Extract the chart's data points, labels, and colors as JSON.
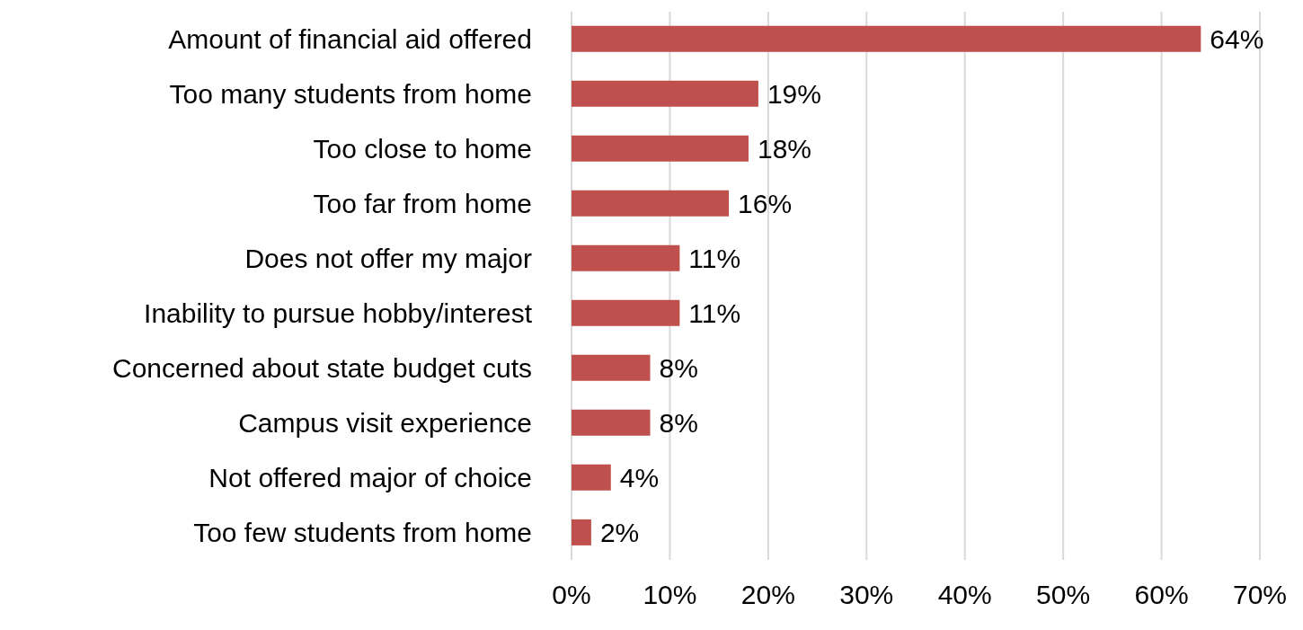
{
  "chart_data": {
    "type": "bar",
    "orientation": "horizontal",
    "categories": [
      "Amount of financial aid offered",
      "Too many students from home",
      "Too close to home",
      "Too far from home",
      "Does not offer my major",
      "Inability to pursue hobby/interest",
      "Concerned about state budget cuts",
      "Campus visit experience",
      "Not offered major of choice",
      "Too few students from home"
    ],
    "values": [
      64,
      19,
      18,
      16,
      11,
      11,
      8,
      8,
      4,
      2
    ],
    "value_labels": [
      "64%",
      "19%",
      "18%",
      "16%",
      "11%",
      "11%",
      "8%",
      "8%",
      "4%",
      "2%"
    ],
    "color": "#c0504d",
    "xlim": [
      0,
      70
    ],
    "xticks": [
      {
        "value": 0,
        "label": "0%"
      },
      {
        "value": 10,
        "label": "10%"
      },
      {
        "value": 20,
        "label": "20%"
      },
      {
        "value": 30,
        "label": "30%"
      },
      {
        "value": 40,
        "label": "40%"
      },
      {
        "value": 50,
        "label": "50%"
      },
      {
        "value": 60,
        "label": "60%"
      },
      {
        "value": 70,
        "label": "70%"
      }
    ],
    "grid": "x"
  }
}
